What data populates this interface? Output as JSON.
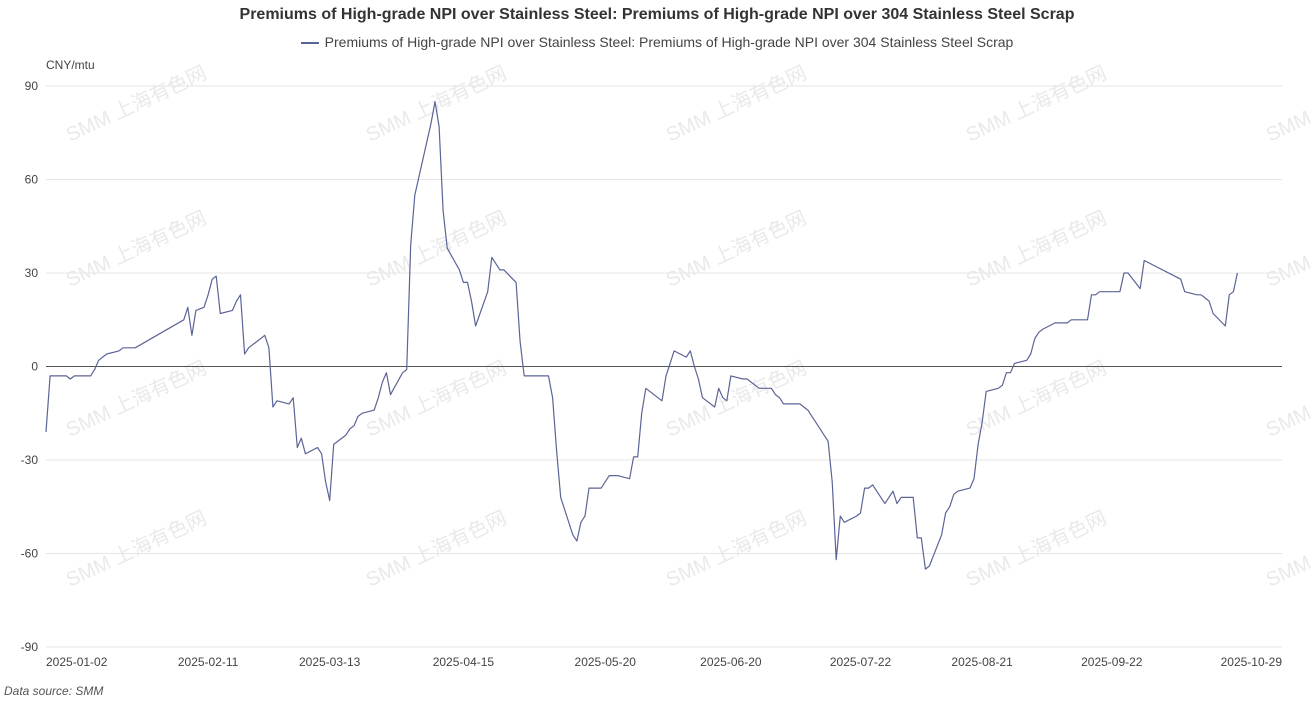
{
  "chart_data": {
    "type": "line",
    "title": "Premiums of High-grade NPI over Stainless Steel: Premiums of High-grade NPI over 304 Stainless Steel Scrap",
    "ylabel": "CNY/mtu",
    "ylim": [
      -90,
      90
    ],
    "yticks": [
      90,
      60,
      30,
      0,
      -30,
      -60,
      -90
    ],
    "xlim": [
      "2025-01-02",
      "2025-11-03"
    ],
    "xticks": [
      "2025-01-02",
      "2025-02-11",
      "2025-03-13",
      "2025-04-15",
      "2025-05-20",
      "2025-06-20",
      "2025-07-22",
      "2025-08-21",
      "2025-09-22",
      "2025-10-29"
    ],
    "grid": true,
    "legend_position": "top",
    "series": [
      {
        "name": "Premiums of High-grade NPI over Stainless Steel: Premiums of High-grade NPI over 304 Stainless Steel Scrap",
        "color": "#5b6496",
        "points": [
          [
            "2025-01-02",
            -21
          ],
          [
            "2025-01-03",
            -3
          ],
          [
            "2025-01-06",
            -3
          ],
          [
            "2025-01-07",
            -3
          ],
          [
            "2025-01-08",
            -4
          ],
          [
            "2025-01-09",
            -3
          ],
          [
            "2025-01-10",
            -3
          ],
          [
            "2025-01-13",
            -3
          ],
          [
            "2025-01-14",
            -1
          ],
          [
            "2025-01-15",
            2
          ],
          [
            "2025-01-16",
            3
          ],
          [
            "2025-01-17",
            4
          ],
          [
            "2025-01-20",
            5
          ],
          [
            "2025-01-21",
            6
          ],
          [
            "2025-01-22",
            6
          ],
          [
            "2025-01-23",
            6
          ],
          [
            "2025-01-24",
            6
          ],
          [
            "2025-02-05",
            15
          ],
          [
            "2025-02-06",
            19
          ],
          [
            "2025-02-07",
            10
          ],
          [
            "2025-02-08",
            18
          ],
          [
            "2025-02-10",
            19
          ],
          [
            "2025-02-11",
            23
          ],
          [
            "2025-02-12",
            28
          ],
          [
            "2025-02-13",
            29
          ],
          [
            "2025-02-14",
            17
          ],
          [
            "2025-02-17",
            18
          ],
          [
            "2025-02-18",
            21
          ],
          [
            "2025-02-19",
            23
          ],
          [
            "2025-02-20",
            4
          ],
          [
            "2025-02-21",
            6
          ],
          [
            "2025-02-24",
            9
          ],
          [
            "2025-02-25",
            10
          ],
          [
            "2025-02-26",
            6
          ],
          [
            "2025-02-27",
            -13
          ],
          [
            "2025-02-28",
            -11
          ],
          [
            "2025-03-03",
            -12
          ],
          [
            "2025-03-04",
            -10
          ],
          [
            "2025-03-05",
            -26
          ],
          [
            "2025-03-06",
            -23
          ],
          [
            "2025-03-07",
            -28
          ],
          [
            "2025-03-10",
            -26
          ],
          [
            "2025-03-11",
            -28
          ],
          [
            "2025-03-12",
            -37
          ],
          [
            "2025-03-13",
            -43
          ],
          [
            "2025-03-14",
            -25
          ],
          [
            "2025-03-17",
            -22
          ],
          [
            "2025-03-18",
            -20
          ],
          [
            "2025-03-19",
            -19
          ],
          [
            "2025-03-20",
            -16
          ],
          [
            "2025-03-21",
            -15
          ],
          [
            "2025-03-24",
            -14
          ],
          [
            "2025-03-25",
            -10
          ],
          [
            "2025-03-26",
            -5
          ],
          [
            "2025-03-27",
            -2
          ],
          [
            "2025-03-28",
            -9
          ],
          [
            "2025-03-31",
            -2
          ],
          [
            "2025-04-01",
            -1
          ],
          [
            "2025-04-02",
            39
          ],
          [
            "2025-04-03",
            55
          ],
          [
            "2025-04-07",
            78
          ],
          [
            "2025-04-08",
            85
          ],
          [
            "2025-04-09",
            77
          ],
          [
            "2025-04-10",
            50
          ],
          [
            "2025-04-11",
            38
          ],
          [
            "2025-04-14",
            31
          ],
          [
            "2025-04-15",
            27
          ],
          [
            "2025-04-16",
            27
          ],
          [
            "2025-04-17",
            21
          ],
          [
            "2025-04-18",
            13
          ],
          [
            "2025-04-21",
            24
          ],
          [
            "2025-04-22",
            35
          ],
          [
            "2025-04-23",
            33
          ],
          [
            "2025-04-24",
            31
          ],
          [
            "2025-04-25",
            31
          ],
          [
            "2025-04-28",
            27
          ],
          [
            "2025-04-29",
            8
          ],
          [
            "2025-04-30",
            -3
          ],
          [
            "2025-05-06",
            -3
          ],
          [
            "2025-05-07",
            -10
          ],
          [
            "2025-05-08",
            -27
          ],
          [
            "2025-05-09",
            -42
          ],
          [
            "2025-05-12",
            -54
          ],
          [
            "2025-05-13",
            -56
          ],
          [
            "2025-05-14",
            -50
          ],
          [
            "2025-05-15",
            -48
          ],
          [
            "2025-05-16",
            -39
          ],
          [
            "2025-05-19",
            -39
          ],
          [
            "2025-05-20",
            -37
          ],
          [
            "2025-05-21",
            -35
          ],
          [
            "2025-05-22",
            -35
          ],
          [
            "2025-05-23",
            -35
          ],
          [
            "2025-05-26",
            -36
          ],
          [
            "2025-05-27",
            -29
          ],
          [
            "2025-05-28",
            -29
          ],
          [
            "2025-05-29",
            -15
          ],
          [
            "2025-05-30",
            -7
          ],
          [
            "2025-06-03",
            -11
          ],
          [
            "2025-06-04",
            -3
          ],
          [
            "2025-06-05",
            1
          ],
          [
            "2025-06-06",
            5
          ],
          [
            "2025-06-09",
            3
          ],
          [
            "2025-06-10",
            5
          ],
          [
            "2025-06-11",
            0
          ],
          [
            "2025-06-12",
            -4
          ],
          [
            "2025-06-13",
            -10
          ],
          [
            "2025-06-16",
            -13
          ],
          [
            "2025-06-17",
            -7
          ],
          [
            "2025-06-18",
            -10
          ],
          [
            "2025-06-19",
            -11
          ],
          [
            "2025-06-20",
            -3
          ],
          [
            "2025-06-23",
            -4
          ],
          [
            "2025-06-24",
            -4
          ],
          [
            "2025-06-25",
            -5
          ],
          [
            "2025-06-26",
            -6
          ],
          [
            "2025-06-27",
            -7
          ],
          [
            "2025-06-30",
            -7
          ],
          [
            "2025-07-01",
            -9
          ],
          [
            "2025-07-02",
            -10
          ],
          [
            "2025-07-03",
            -12
          ],
          [
            "2025-07-04",
            -12
          ],
          [
            "2025-07-07",
            -12
          ],
          [
            "2025-07-08",
            -13
          ],
          [
            "2025-07-09",
            -14
          ],
          [
            "2025-07-10",
            -16
          ],
          [
            "2025-07-11",
            -18
          ],
          [
            "2025-07-14",
            -24
          ],
          [
            "2025-07-15",
            -37
          ],
          [
            "2025-07-16",
            -62
          ],
          [
            "2025-07-17",
            -48
          ],
          [
            "2025-07-18",
            -50
          ],
          [
            "2025-07-21",
            -48
          ],
          [
            "2025-07-22",
            -47
          ],
          [
            "2025-07-23",
            -39
          ],
          [
            "2025-07-24",
            -39
          ],
          [
            "2025-07-25",
            -38
          ],
          [
            "2025-07-28",
            -44
          ],
          [
            "2025-07-29",
            -42
          ],
          [
            "2025-07-30",
            -40
          ],
          [
            "2025-07-31",
            -44
          ],
          [
            "2025-08-01",
            -42
          ],
          [
            "2025-08-04",
            -42
          ],
          [
            "2025-08-05",
            -55
          ],
          [
            "2025-08-06",
            -55
          ],
          [
            "2025-08-07",
            -65
          ],
          [
            "2025-08-08",
            -64
          ],
          [
            "2025-08-11",
            -54
          ],
          [
            "2025-08-12",
            -47
          ],
          [
            "2025-08-13",
            -45
          ],
          [
            "2025-08-14",
            -41
          ],
          [
            "2025-08-15",
            -40
          ],
          [
            "2025-08-18",
            -39
          ],
          [
            "2025-08-19",
            -36
          ],
          [
            "2025-08-20",
            -25
          ],
          [
            "2025-08-21",
            -18
          ],
          [
            "2025-08-22",
            -8
          ],
          [
            "2025-08-25",
            -7
          ],
          [
            "2025-08-26",
            -6
          ],
          [
            "2025-08-27",
            -2
          ],
          [
            "2025-08-28",
            -2
          ],
          [
            "2025-08-29",
            1
          ],
          [
            "2025-09-01",
            2
          ],
          [
            "2025-09-02",
            4
          ],
          [
            "2025-09-03",
            9
          ],
          [
            "2025-09-04",
            11
          ],
          [
            "2025-09-05",
            12
          ],
          [
            "2025-09-08",
            14
          ],
          [
            "2025-09-09",
            14
          ],
          [
            "2025-09-10",
            14
          ],
          [
            "2025-09-11",
            14
          ],
          [
            "2025-09-12",
            15
          ],
          [
            "2025-09-15",
            15
          ],
          [
            "2025-09-16",
            15
          ],
          [
            "2025-09-17",
            23
          ],
          [
            "2025-09-18",
            23
          ],
          [
            "2025-09-19",
            24
          ],
          [
            "2025-09-22",
            24
          ],
          [
            "2025-09-23",
            24
          ],
          [
            "2025-09-24",
            24
          ],
          [
            "2025-09-25",
            30
          ],
          [
            "2025-09-26",
            30
          ],
          [
            "2025-09-29",
            25
          ],
          [
            "2025-09-30",
            34
          ],
          [
            "2025-10-09",
            28
          ],
          [
            "2025-10-10",
            24
          ],
          [
            "2025-10-13",
            23
          ],
          [
            "2025-10-14",
            23
          ],
          [
            "2025-10-15",
            22
          ],
          [
            "2025-10-16",
            21
          ],
          [
            "2025-10-17",
            17
          ],
          [
            "2025-10-20",
            13
          ],
          [
            "2025-10-21",
            23
          ],
          [
            "2025-10-22",
            24
          ],
          [
            "2025-10-23",
            30
          ]
        ]
      }
    ],
    "watermark": "SMM 上海有色网"
  },
  "labels": {
    "title": "Premiums of High-grade NPI over Stainless Steel: Premiums of High-grade NPI over 304 Stainless Steel Scrap",
    "legend": "Premiums of High-grade NPI over Stainless Steel: Premiums of High-grade NPI over 304 Stainless Steel Scrap",
    "unit": "CNY/mtu",
    "source": "Data source:  SMM"
  },
  "colors": {
    "line": "#5b6496",
    "grid": "#e6e6e6",
    "zero_line": "#555555"
  }
}
